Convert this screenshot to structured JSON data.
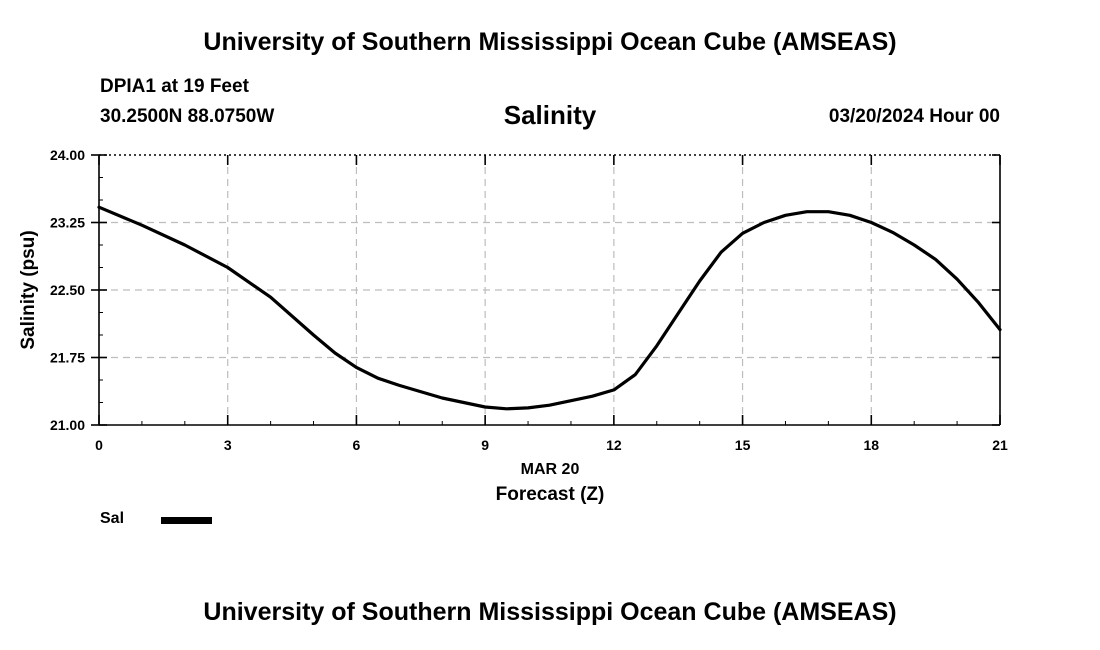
{
  "header": {
    "title": "University of Southern Mississippi Ocean Cube (AMSEAS)",
    "station": "DPIA1 at 19 Feet",
    "coords": "30.2500N  88.0750W",
    "datetime": "03/20/2024 Hour 00"
  },
  "footer": {
    "title": "University of Southern Mississippi Ocean Cube (AMSEAS)"
  },
  "legend": {
    "label": "Sal"
  },
  "chart_data": {
    "type": "line",
    "title": "Salinity",
    "xlabel": "Forecast (Z)",
    "x_date_label": "MAR 20",
    "ylabel": "Salinity (psu)",
    "xlim": [
      0,
      21
    ],
    "ylim": [
      21.0,
      24.0
    ],
    "x_ticks": [
      0,
      3,
      6,
      9,
      12,
      15,
      18,
      21
    ],
    "y_ticks": [
      "21.00",
      "21.75",
      "22.50",
      "23.25",
      "24.00"
    ],
    "grid": true,
    "legend_position": "bottom-left",
    "series": [
      {
        "name": "Sal",
        "color": "#000000",
        "x": [
          0,
          1,
          2,
          3,
          4,
          5,
          5.5,
          6,
          6.5,
          7,
          8,
          9,
          9.5,
          10,
          10.5,
          11,
          11.5,
          12,
          12.5,
          13,
          13.5,
          14,
          14.5,
          15,
          15.5,
          16,
          16.5,
          17,
          17.5,
          18,
          18.5,
          19,
          19.5,
          20,
          20.5,
          21
        ],
        "y": [
          23.42,
          23.22,
          23.0,
          22.75,
          22.42,
          22.0,
          21.8,
          21.64,
          21.52,
          21.44,
          21.3,
          21.2,
          21.18,
          21.19,
          21.22,
          21.27,
          21.32,
          21.39,
          21.56,
          21.88,
          22.24,
          22.6,
          22.92,
          23.13,
          23.25,
          23.33,
          23.37,
          23.37,
          23.33,
          23.25,
          23.14,
          23.0,
          22.84,
          22.62,
          22.36,
          22.06
        ]
      }
    ]
  }
}
